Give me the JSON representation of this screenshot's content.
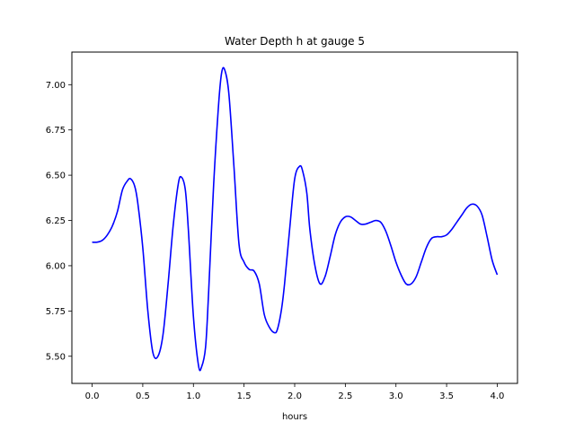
{
  "chart_data": {
    "type": "line",
    "title": "Water Depth h at gauge 5",
    "xlabel": "hours",
    "ylabel": "",
    "xlim": [
      -0.2,
      4.2
    ],
    "ylim": [
      5.35,
      7.18
    ],
    "xticks": [
      0.0,
      0.5,
      1.0,
      1.5,
      2.0,
      2.5,
      3.0,
      3.5,
      4.0
    ],
    "xtick_labels": [
      "0.0",
      "0.5",
      "1.0",
      "1.5",
      "2.0",
      "2.5",
      "3.0",
      "3.5",
      "4.0"
    ],
    "yticks": [
      5.5,
      5.75,
      6.0,
      6.25,
      6.5,
      6.75,
      7.0
    ],
    "ytick_labels": [
      "5.50",
      "5.75",
      "6.00",
      "6.25",
      "6.50",
      "6.75",
      "7.00"
    ],
    "grid": false,
    "series": [
      {
        "color": "#0000ff",
        "x": [
          0.0,
          0.05,
          0.1,
          0.15,
          0.2,
          0.25,
          0.3,
          0.35,
          0.38,
          0.42,
          0.45,
          0.5,
          0.55,
          0.6,
          0.65,
          0.7,
          0.75,
          0.8,
          0.85,
          0.88,
          0.92,
          0.95,
          1.0,
          1.05,
          1.08,
          1.12,
          1.15,
          1.2,
          1.25,
          1.28,
          1.31,
          1.35,
          1.4,
          1.45,
          1.5,
          1.55,
          1.6,
          1.65,
          1.7,
          1.75,
          1.8,
          1.83,
          1.87,
          1.9,
          1.95,
          2.0,
          2.05,
          2.08,
          2.12,
          2.15,
          2.2,
          2.25,
          2.3,
          2.35,
          2.4,
          2.45,
          2.5,
          2.55,
          2.6,
          2.65,
          2.7,
          2.75,
          2.8,
          2.85,
          2.9,
          2.95,
          3.0,
          3.05,
          3.1,
          3.15,
          3.2,
          3.25,
          3.3,
          3.35,
          3.4,
          3.45,
          3.5,
          3.55,
          3.6,
          3.65,
          3.7,
          3.75,
          3.8,
          3.85,
          3.9,
          3.95,
          4.0
        ],
        "y": [
          6.13,
          6.13,
          6.14,
          6.17,
          6.22,
          6.3,
          6.42,
          6.47,
          6.48,
          6.44,
          6.35,
          6.1,
          5.75,
          5.52,
          5.5,
          5.62,
          5.9,
          6.22,
          6.45,
          6.49,
          6.42,
          6.2,
          5.72,
          5.45,
          5.44,
          5.55,
          5.85,
          6.45,
          6.9,
          7.07,
          7.08,
          6.95,
          6.55,
          6.12,
          6.02,
          5.98,
          5.97,
          5.9,
          5.73,
          5.66,
          5.63,
          5.65,
          5.76,
          5.9,
          6.2,
          6.48,
          6.55,
          6.52,
          6.4,
          6.2,
          6.0,
          5.9,
          5.94,
          6.05,
          6.17,
          6.24,
          6.27,
          6.27,
          6.25,
          6.23,
          6.23,
          6.24,
          6.25,
          6.24,
          6.19,
          6.11,
          6.02,
          5.95,
          5.9,
          5.9,
          5.94,
          6.02,
          6.1,
          6.15,
          6.16,
          6.16,
          6.17,
          6.2,
          6.24,
          6.28,
          6.32,
          6.34,
          6.33,
          6.28,
          6.16,
          6.03,
          5.95
        ]
      }
    ]
  }
}
